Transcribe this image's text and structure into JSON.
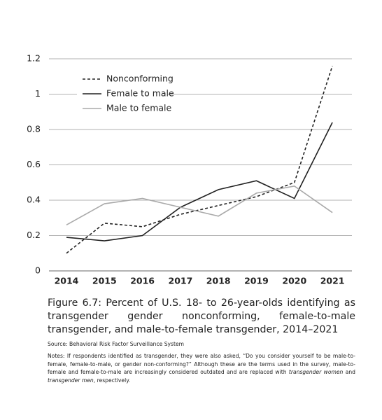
{
  "chart_data": {
    "type": "line",
    "categories": [
      "2014",
      "2015",
      "2016",
      "2017",
      "2018",
      "2019",
      "2020",
      "2021"
    ],
    "series": [
      {
        "name": "Nonconforming",
        "color": "#222222",
        "dash": true,
        "values": [
          0.1,
          0.27,
          0.25,
          0.32,
          0.37,
          0.42,
          0.5,
          1.16
        ]
      },
      {
        "name": "Female to male",
        "color": "#222222",
        "dash": false,
        "values": [
          0.19,
          0.17,
          0.2,
          0.36,
          0.46,
          0.51,
          0.41,
          0.84
        ]
      },
      {
        "name": "Male to female",
        "color": "#aaaaaa",
        "dash": false,
        "values": [
          0.26,
          0.38,
          0.41,
          0.36,
          0.31,
          0.44,
          0.48,
          0.33
        ]
      }
    ],
    "ylim": [
      0,
      1.2
    ],
    "yticks": [
      0,
      0.2,
      0.4,
      0.6,
      0.8,
      1,
      1.2
    ],
    "grid": true,
    "legend": "upper left",
    "caption": "Figure 6.7: Percent of U.S. 18- to 26-year-olds identifying as transgender gender nonconforming, female-to-male transgender, and male-to-female transgender, 2014–2021",
    "source": "Source: Behavioral Risk Factor Surveillance System",
    "notes": [
      "Notes: If respondents identified as transgender, they were also asked, “Do you consider yourself to be male-to-female, female-to-male, or gender non-conforming?” Although these are the terms used in the survey, male-to-female and female-to-male are increasingly considered outdated and are replaced with ",
      "transgender women",
      " and ",
      "transgender men",
      ", respectively."
    ]
  }
}
